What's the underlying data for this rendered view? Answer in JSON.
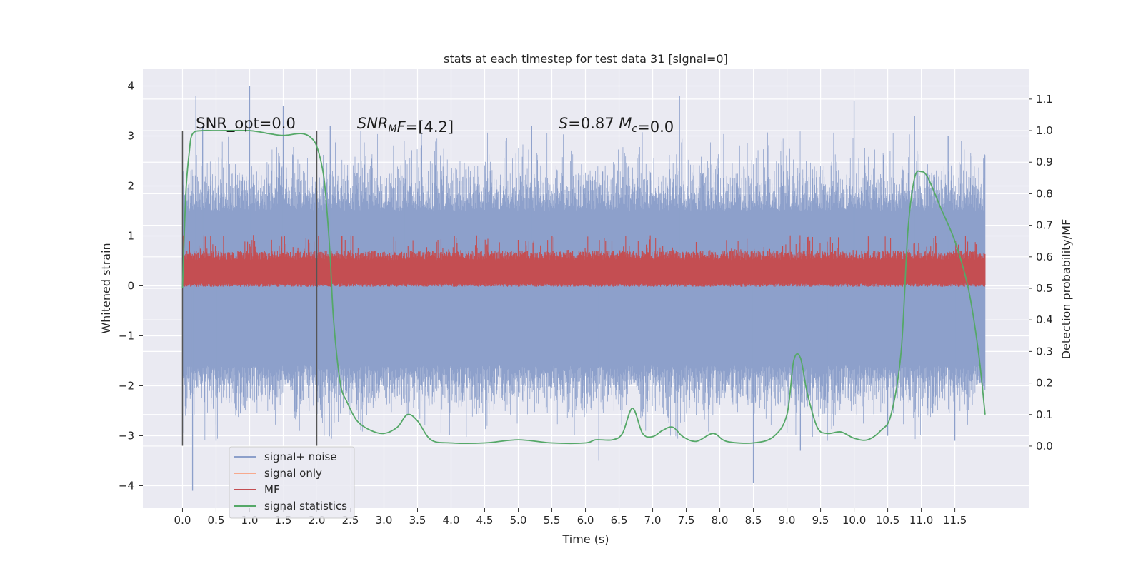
{
  "chart_data": {
    "type": "line",
    "title": "stats at each timestep for test data 31 [signal=0]",
    "xlabel": "Time (s)",
    "ylabel": "Whitened strain",
    "y2label": "Detection probability/MF",
    "xlim": [
      -0.59,
      12.6
    ],
    "ylim": [
      -4.45,
      4.35
    ],
    "y2lim": [
      -0.197,
      1.197
    ],
    "xticks": [
      0.0,
      0.5,
      1.0,
      1.5,
      2.0,
      2.5,
      3.0,
      3.5,
      4.0,
      4.5,
      5.0,
      5.5,
      6.0,
      6.5,
      7.0,
      7.5,
      8.0,
      8.5,
      9.0,
      9.5,
      10.0,
      10.5,
      11.0,
      11.5
    ],
    "xtick_labels": [
      "0.0",
      "0.5",
      "1.0",
      "1.5",
      "2.0",
      "2.5",
      "3.0",
      "3.5",
      "4.0",
      "4.5",
      "5.0",
      "5.5",
      "6.0",
      "6.5",
      "7.0",
      "7.5",
      "8.0",
      "8.5",
      "9.0",
      "9.5",
      "10.0",
      "10.5",
      "11.0",
      "11.5"
    ],
    "yticks": [
      -4,
      -3,
      -2,
      -1,
      0,
      1,
      2,
      3,
      4
    ],
    "ytick_labels": [
      "−4",
      "−3",
      "−2",
      "−1",
      "0",
      "1",
      "2",
      "3",
      "4"
    ],
    "y2ticks": [
      0.0,
      0.1,
      0.2,
      0.3,
      0.4,
      0.5,
      0.6,
      0.7,
      0.8,
      0.9,
      1.0,
      1.1
    ],
    "y2tick_labels": [
      "0.0",
      "0.1",
      "0.2",
      "0.3",
      "0.4",
      "0.5",
      "0.6",
      "0.7",
      "0.8",
      "0.9",
      "1.0",
      "1.1"
    ],
    "grid": true,
    "legend_position": "lower-left",
    "vertical_markers": [
      0.0,
      2.0
    ],
    "vertical_marker_range": [
      -3.2,
      3.1
    ],
    "annotations": [
      {
        "x": 0.2,
        "y": 3.15,
        "parts": [
          {
            "text": "SNR_opt=0.0",
            "italic": false
          }
        ]
      },
      {
        "x": 2.6,
        "y": 3.15,
        "parts": [
          {
            "text": "SNR",
            "italic": true
          },
          {
            "text": "M",
            "italic": true,
            "sub": true
          },
          {
            "text": "F",
            "italic": true
          },
          {
            "text": "=[4.2]",
            "italic": false
          }
        ]
      },
      {
        "x": 5.6,
        "y": 3.15,
        "parts": [
          {
            "text": "S",
            "italic": true
          },
          {
            "text": "=0.87   ",
            "italic": false
          },
          {
            "text": "M",
            "italic": true
          },
          {
            "text": "c",
            "italic": true,
            "sub": true
          },
          {
            "text": "=0.0",
            "italic": false
          }
        ]
      }
    ],
    "series": [
      {
        "name": "signal+ noise",
        "axis": "left",
        "color": "#8da0cb",
        "style": "noise",
        "t_range": [
          0.0,
          11.95
        ],
        "typical_range": [
          -1.6,
          1.5
        ],
        "peaks_x": [
          0.2,
          0.3,
          1.0,
          1.5,
          2.2,
          3.3,
          5.2,
          7.4,
          10.0,
          10.9,
          11.4,
          11.6
        ],
        "peaks_y": [
          3.8,
          3.2,
          4.0,
          3.6,
          3.2,
          2.9,
          3.2,
          3.8,
          3.7,
          3.4,
          3.0,
          2.9
        ],
        "troughs_x": [
          0.15,
          0.5,
          6.2,
          8.5,
          9.2,
          9.6,
          10.5,
          11.5
        ],
        "troughs_y": [
          -4.1,
          -3.1,
          -3.5,
          -3.95,
          -3.3,
          -3.1,
          -3.0,
          -3.1
        ]
      },
      {
        "name": "signal only",
        "axis": "left",
        "color": "#fc8d62",
        "values": []
      },
      {
        "name": "MF",
        "axis": "right",
        "color": "#c44e52",
        "style": "mf",
        "t_range": [
          0.0,
          11.95
        ],
        "typical_range": [
          0.505,
          0.62
        ],
        "max_value": 0.67
      },
      {
        "name": "signal statistics",
        "axis": "right",
        "color": "#55a868",
        "x": [
          0.0,
          0.05,
          0.1,
          0.15,
          0.3,
          0.5,
          1.0,
          1.3,
          1.5,
          1.7,
          1.8,
          1.9,
          2.0,
          2.1,
          2.15,
          2.2,
          2.25,
          2.35,
          2.45,
          2.6,
          2.8,
          3.0,
          3.2,
          3.35,
          3.5,
          3.7,
          4.0,
          4.5,
          5.0,
          5.5,
          6.0,
          6.15,
          6.4,
          6.55,
          6.7,
          6.85,
          7.0,
          7.15,
          7.3,
          7.45,
          7.65,
          7.9,
          8.1,
          8.5,
          8.8,
          9.0,
          9.1,
          9.2,
          9.3,
          9.45,
          9.6,
          9.8,
          10.0,
          10.2,
          10.4,
          10.55,
          10.7,
          10.8,
          10.9,
          11.0,
          11.1,
          11.3,
          11.5,
          11.7,
          11.85,
          11.95
        ],
        "y": [
          0.5,
          0.8,
          0.93,
          0.99,
          1.0,
          1.0,
          1.0,
          0.99,
          0.985,
          0.99,
          0.99,
          0.98,
          0.95,
          0.86,
          0.75,
          0.6,
          0.4,
          0.2,
          0.14,
          0.08,
          0.05,
          0.04,
          0.06,
          0.1,
          0.08,
          0.02,
          0.01,
          0.01,
          0.02,
          0.01,
          0.01,
          0.02,
          0.02,
          0.04,
          0.12,
          0.04,
          0.03,
          0.05,
          0.06,
          0.03,
          0.015,
          0.04,
          0.015,
          0.01,
          0.03,
          0.1,
          0.27,
          0.28,
          0.17,
          0.06,
          0.04,
          0.045,
          0.025,
          0.02,
          0.05,
          0.1,
          0.3,
          0.68,
          0.85,
          0.87,
          0.85,
          0.75,
          0.65,
          0.5,
          0.3,
          0.1
        ]
      }
    ]
  }
}
